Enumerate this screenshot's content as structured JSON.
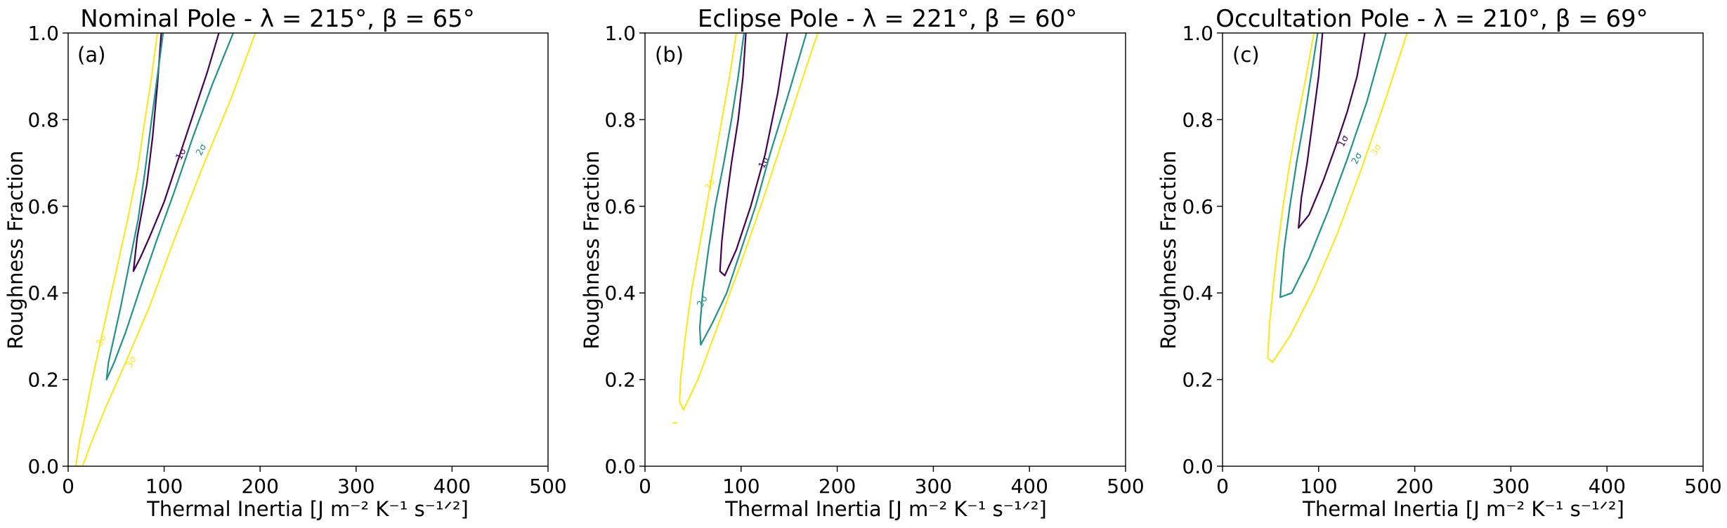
{
  "chart_data": [
    {
      "type": "contour",
      "title": "Nominal Pole - λ = 215°, β = 65°",
      "panel_tag": "(a)",
      "xlabel": "Thermal Inertia [J m⁻² K⁻¹ s⁻¹ᐟ²]",
      "ylabel": "Roughness Fraction",
      "xlim": [
        0,
        500
      ],
      "ylim": [
        0.0,
        1.0
      ],
      "xticks": [
        "0",
        "100",
        "200",
        "300",
        "400",
        "500"
      ],
      "yticks": [
        "0.0",
        "0.2",
        "0.4",
        "0.6",
        "0.8",
        "1.0"
      ],
      "grid": false,
      "contours": [
        {
          "level": "1σ",
          "color": "#440154",
          "label_at": [
            118,
            0.72
          ],
          "points": [
            [
              97,
              1.0
            ],
            [
              93,
              0.88
            ],
            [
              88,
              0.76
            ],
            [
              82,
              0.65
            ],
            [
              77,
              0.59
            ],
            [
              72,
              0.53
            ],
            [
              70,
              0.49
            ],
            [
              68,
              0.45
            ],
            [
              75,
              0.48
            ],
            [
              85,
              0.53
            ],
            [
              100,
              0.61
            ],
            [
              115,
              0.71
            ],
            [
              130,
              0.81
            ],
            [
              145,
              0.91
            ],
            [
              157,
              1.0
            ]
          ]
        },
        {
          "level": "2σ",
          "color": "#21918c",
          "label_at": [
            139,
            0.73
          ],
          "points": [
            [
              99,
              1.0
            ],
            [
              93,
              0.9
            ],
            [
              87,
              0.8
            ],
            [
              80,
              0.68
            ],
            [
              73,
              0.57
            ],
            [
              64,
              0.47
            ],
            [
              55,
              0.37
            ],
            [
              48,
              0.3
            ],
            [
              42,
              0.24
            ],
            [
              40,
              0.2
            ],
            [
              48,
              0.24
            ],
            [
              60,
              0.31
            ],
            [
              75,
              0.41
            ],
            [
              92,
              0.52
            ],
            [
              110,
              0.63
            ],
            [
              130,
              0.76
            ],
            [
              150,
              0.88
            ],
            [
              172,
              1.0
            ]
          ]
        },
        {
          "level": "3σ",
          "color": "#fde725",
          "label_at": [
            [
              35,
              0.29
            ],
            [
              66,
              0.24
            ]
          ],
          "points": [
            [
              93,
              1.0
            ],
            [
              87,
              0.9
            ],
            [
              80,
              0.8
            ],
            [
              72,
              0.68
            ],
            [
              62,
              0.57
            ],
            [
              51,
              0.46
            ],
            [
              40,
              0.35
            ],
            [
              32,
              0.27
            ],
            [
              25,
              0.2
            ],
            [
              18,
              0.12
            ],
            [
              12,
              0.06
            ],
            [
              8,
              0.0
            ],
            [
              15,
              0.0
            ],
            [
              25,
              0.06
            ],
            [
              40,
              0.14
            ],
            [
              60,
              0.24
            ],
            [
              85,
              0.37
            ],
            [
              110,
              0.52
            ],
            [
              140,
              0.69
            ],
            [
              170,
              0.85
            ],
            [
              195,
              1.0
            ]
          ]
        }
      ]
    },
    {
      "type": "contour",
      "title": "Eclipse Pole - λ = 221°, β = 60°",
      "panel_tag": "(b)",
      "xlabel": "Thermal Inertia [J m⁻² K⁻¹ s⁻¹ᐟ²]",
      "ylabel": "Roughness Fraction",
      "xlim": [
        0,
        500
      ],
      "ylim": [
        0.0,
        1.0
      ],
      "xticks": [
        "0",
        "100",
        "200",
        "300",
        "400",
        "500"
      ],
      "yticks": [
        "0.0",
        "0.2",
        "0.4",
        "0.6",
        "0.8",
        "1.0"
      ],
      "grid": false,
      "contours": [
        {
          "level": "1σ",
          "color": "#440154",
          "label_at": [
            124,
            0.7
          ],
          "points": [
            [
              105,
              1.0
            ],
            [
              102,
              0.9
            ],
            [
              97,
              0.8
            ],
            [
              90,
              0.7
            ],
            [
              84,
              0.6
            ],
            [
              80,
              0.52
            ],
            [
              78,
              0.45
            ],
            [
              83,
              0.44
            ],
            [
              95,
              0.5
            ],
            [
              110,
              0.6
            ],
            [
              125,
              0.72
            ],
            [
              138,
              0.86
            ],
            [
              148,
              1.0
            ]
          ]
        },
        {
          "level": "2σ",
          "color": "#21918c",
          "label_at": [
            60,
            0.38
          ],
          "points": [
            [
              103,
              1.0
            ],
            [
              97,
              0.9
            ],
            [
              90,
              0.8
            ],
            [
              82,
              0.7
            ],
            [
              73,
              0.6
            ],
            [
              66,
              0.5
            ],
            [
              60,
              0.4
            ],
            [
              57,
              0.32
            ],
            [
              58,
              0.28
            ],
            [
              70,
              0.33
            ],
            [
              85,
              0.4
            ],
            [
              100,
              0.5
            ],
            [
              115,
              0.6
            ],
            [
              130,
              0.72
            ],
            [
              148,
              0.85
            ],
            [
              168,
              1.0
            ]
          ]
        },
        {
          "level": "3σ",
          "color": "#fde725",
          "label_at": [
            68,
            0.65
          ],
          "points": [
            [
              95,
              1.0
            ],
            [
              88,
              0.9
            ],
            [
              80,
              0.8
            ],
            [
              72,
              0.7
            ],
            [
              64,
              0.6
            ],
            [
              56,
              0.5
            ],
            [
              48,
              0.4
            ],
            [
              42,
              0.3
            ],
            [
              37,
              0.2
            ],
            [
              36,
              0.15
            ],
            [
              40,
              0.13
            ],
            [
              55,
              0.2
            ],
            [
              75,
              0.32
            ],
            [
              100,
              0.47
            ],
            [
              125,
              0.63
            ],
            [
              150,
              0.8
            ],
            [
              172,
              0.95
            ],
            [
              180,
              1.0
            ]
          ]
        },
        {
          "level": "3σ",
          "color": "#fde725",
          "label_at": null,
          "points": [
            [
              29,
              0.1
            ],
            [
              33,
              0.1
            ]
          ]
        }
      ]
    },
    {
      "type": "contour",
      "title": "Occultation Pole - λ = 210°, β = 69°",
      "panel_tag": "(c)",
      "xlabel": "Thermal Inertia [J m⁻² K⁻¹ s⁻¹ᐟ²]",
      "ylabel": "Roughness Fraction",
      "xlim": [
        0,
        500
      ],
      "ylim": [
        0.0,
        1.0
      ],
      "xticks": [
        "0",
        "100",
        "200",
        "300",
        "400",
        "500"
      ],
      "yticks": [
        "0.0",
        "0.2",
        "0.4",
        "0.6",
        "0.8",
        "1.0"
      ],
      "grid": false,
      "contours": [
        {
          "level": "1σ",
          "color": "#440154",
          "label_at": [
            126,
            0.75
          ],
          "points": [
            [
              104,
              1.0
            ],
            [
              100,
              0.9
            ],
            [
              94,
              0.8
            ],
            [
              88,
              0.7
            ],
            [
              82,
              0.62
            ],
            [
              80,
              0.57
            ],
            [
              79,
              0.55
            ],
            [
              90,
              0.58
            ],
            [
              105,
              0.66
            ],
            [
              118,
              0.74
            ],
            [
              130,
              0.82
            ],
            [
              140,
              0.9
            ],
            [
              148,
              1.0
            ]
          ]
        },
        {
          "level": "2σ",
          "color": "#21918c",
          "label_at": [
            140,
            0.71
          ],
          "points": [
            [
              99,
              1.0
            ],
            [
              92,
              0.9
            ],
            [
              85,
              0.8
            ],
            [
              77,
              0.7
            ],
            [
              70,
              0.6
            ],
            [
              64,
              0.5
            ],
            [
              61,
              0.42
            ],
            [
              60,
              0.39
            ],
            [
              72,
              0.4
            ],
            [
              90,
              0.48
            ],
            [
              110,
              0.59
            ],
            [
              130,
              0.71
            ],
            [
              150,
              0.84
            ],
            [
              170,
              1.0
            ]
          ]
        },
        {
          "level": "3σ",
          "color": "#fde725",
          "label_at": [
            160,
            0.73
          ],
          "points": [
            [
              95,
              1.0
            ],
            [
              87,
              0.9
            ],
            [
              78,
              0.8
            ],
            [
              70,
              0.7
            ],
            [
              63,
              0.6
            ],
            [
              57,
              0.5
            ],
            [
              53,
              0.42
            ],
            [
              49,
              0.33
            ],
            [
              47,
              0.25
            ],
            [
              52,
              0.24
            ],
            [
              70,
              0.3
            ],
            [
              95,
              0.41
            ],
            [
              120,
              0.54
            ],
            [
              145,
              0.69
            ],
            [
              170,
              0.85
            ],
            [
              192,
              1.0
            ]
          ]
        }
      ]
    }
  ]
}
